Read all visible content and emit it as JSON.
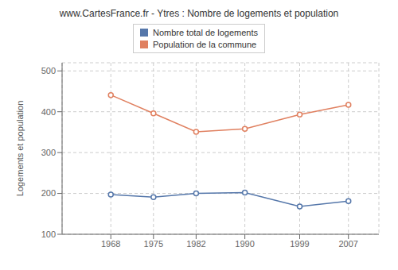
{
  "chart_data": {
    "type": "line",
    "title": "www.CartesFrance.fr - Ytres : Nombre de logements et population",
    "ylabel": "Logements et population",
    "x": [
      1968,
      1975,
      1982,
      1990,
      1999,
      2007
    ],
    "series": [
      {
        "name": "Nombre total de logements",
        "color": "#5577aa",
        "marker": "circle",
        "values": [
          197,
          191,
          200,
          202,
          168,
          181
        ]
      },
      {
        "name": "Population de la commune",
        "color": "#e08060",
        "marker": "circle",
        "values": [
          441,
          396,
          351,
          358,
          393,
          417
        ]
      }
    ],
    "xlim": [
      1960,
      2012
    ],
    "xticks": [
      1968,
      1975,
      1982,
      1990,
      1999,
      2007
    ],
    "ylim": [
      100,
      520
    ],
    "yticks": [
      100,
      200,
      300,
      400,
      500
    ],
    "grid": true,
    "legend": "top"
  }
}
